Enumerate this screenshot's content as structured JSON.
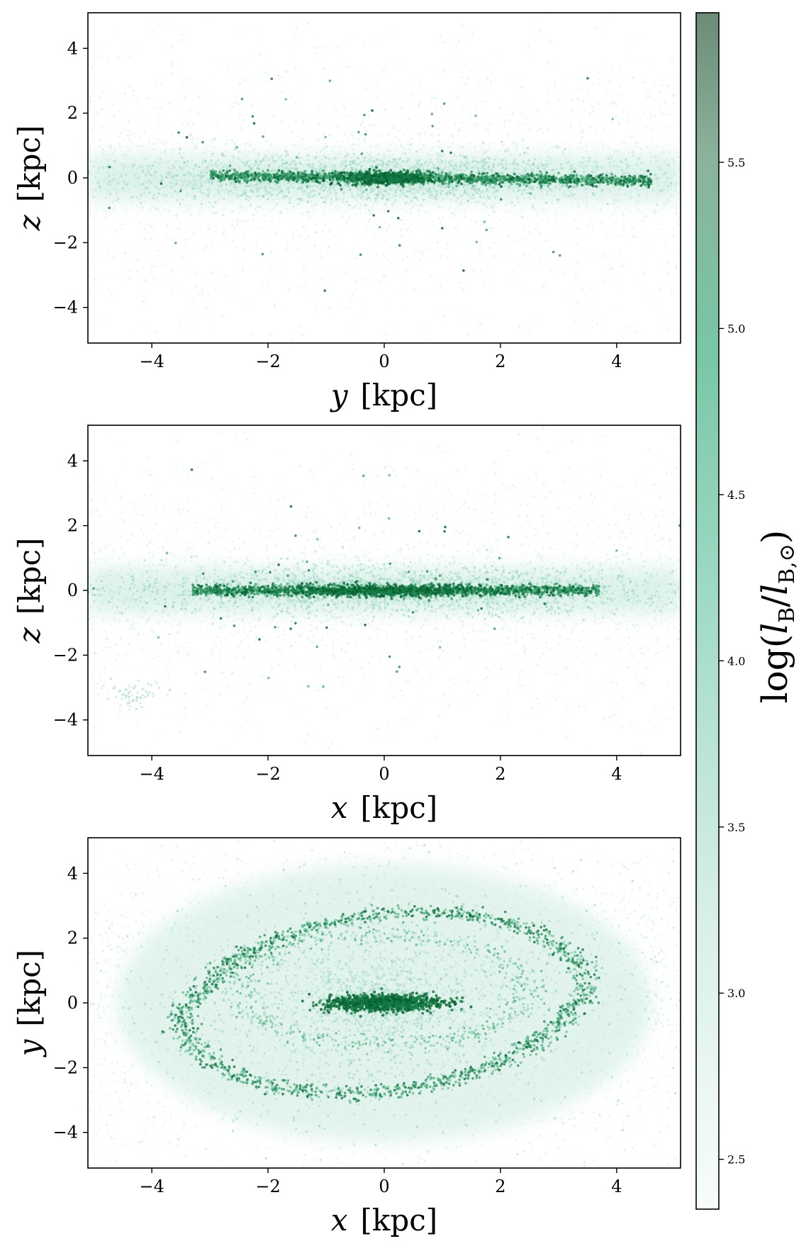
{
  "figure": {
    "colorbar": {
      "label_parts": [
        "log(",
        "l",
        "B",
        "/",
        "l",
        "B,⊙",
        ")"
      ],
      "ticks": [
        2.5,
        3.0,
        3.5,
        4.0,
        4.5,
        5.0,
        5.5
      ],
      "tick_labels": [
        "2.5",
        "3.0",
        "3.5",
        "4.0",
        "4.5",
        "5.0",
        "5.5"
      ],
      "range": [
        2.35,
        5.95
      ],
      "cmap_low": "#f5fbf9",
      "cmap_mid": "#66c2a4",
      "cmap_high": "#00441b"
    }
  },
  "chart_data": [
    {
      "type": "scatter",
      "panel": "top",
      "title": "",
      "xvar": "y",
      "xunit": "[kpc]",
      "yvar": "z",
      "yunit": "[kpc]",
      "xlim": [
        -5.1,
        5.1
      ],
      "ylim": [
        -5.1,
        5.1
      ],
      "xticks": [
        -4,
        -2,
        0,
        2,
        4
      ],
      "yticks": [
        -4,
        -2,
        0,
        2,
        4
      ],
      "xtick_labels": [
        "−4",
        "−2",
        "0",
        "2",
        "4"
      ],
      "ytick_labels": [
        "−4",
        "−2",
        "0",
        "2",
        "4"
      ],
      "grid": false,
      "structure": "edge-on thin disk along z≈0 spanning y≈−3..4, dense bulge at y≈0, diffuse halo",
      "color_by": "log(l_B/l_B,sun)"
    },
    {
      "type": "scatter",
      "panel": "middle",
      "title": "",
      "xvar": "x",
      "xunit": "[kpc]",
      "yvar": "z",
      "yunit": "[kpc]",
      "xlim": [
        -5.1,
        5.1
      ],
      "ylim": [
        -5.1,
        5.1
      ],
      "xticks": [
        -4,
        -2,
        0,
        2,
        4
      ],
      "yticks": [
        -4,
        -2,
        0,
        2,
        4
      ],
      "xtick_labels": [
        "−4",
        "−2",
        "0",
        "2",
        "4"
      ],
      "ytick_labels": [
        "−4",
        "−2",
        "0",
        "2",
        "4"
      ],
      "grid": false,
      "structure": "edge-on thin disk along z≈0 spanning x≈−3.3..3.6, bar visible at x≈−1..1, small satellite near (−4.3, −3.2)",
      "color_by": "log(l_B/l_B,sun)"
    },
    {
      "type": "scatter",
      "panel": "bottom",
      "title": "",
      "xvar": "x",
      "xunit": "[kpc]",
      "yvar": "y",
      "yunit": "[kpc]",
      "xlim": [
        -5.1,
        5.1
      ],
      "ylim": [
        -5.1,
        5.1
      ],
      "xticks": [
        -4,
        -2,
        0,
        2,
        4
      ],
      "yticks": [
        -4,
        -2,
        0,
        2,
        4
      ],
      "xtick_labels": [
        "−4",
        "−2",
        "0",
        "2",
        "4"
      ],
      "ytick_labels": [
        "−4",
        "−2",
        "0",
        "2",
        "4"
      ],
      "grid": false,
      "structure": "face-on barred spiral: central bar along x from −1.2 to 1.2, two spiral arms/ring at radius ≈2.5–3.3 kpc",
      "color_by": "log(l_B/l_B,sun)"
    }
  ]
}
